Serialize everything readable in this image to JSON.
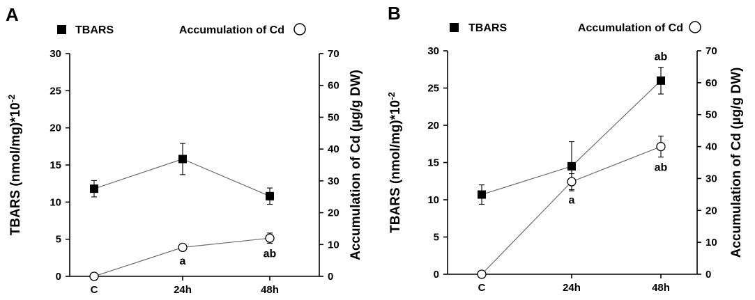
{
  "chart_data": [
    {
      "panel": "A",
      "type": "line",
      "categories": [
        "C",
        "24h",
        "48h"
      ],
      "legend": {
        "left": "TBARS",
        "right": "Accumulation of Cd"
      },
      "ylabel_left": "TBARS (nmol/mg)*10",
      "ylabel_left_sup": "-2",
      "ylabel_right": "Accumulation of Cd (µg/g DW)",
      "ylim_left": [
        0,
        30
      ],
      "yticks_left": [
        "0",
        "5",
        "10",
        "15",
        "20",
        "25",
        "30"
      ],
      "ylim_right": [
        0,
        70
      ],
      "yticks_right": [
        "0",
        "10",
        "20",
        "30",
        "40",
        "50",
        "60",
        "70"
      ],
      "series": [
        {
          "name": "TBARS",
          "axis": "left",
          "marker": "square-filled",
          "values": [
            11.8,
            15.8,
            10.8
          ],
          "errors": [
            1.1,
            2.1,
            1.1
          ],
          "labels": [
            "",
            "",
            ""
          ]
        },
        {
          "name": "Accumulation of Cd",
          "axis": "right",
          "marker": "circle-open",
          "values": [
            0,
            9.1,
            12.0
          ],
          "errors": [
            0,
            1.0,
            1.6
          ],
          "labels": [
            "",
            "a",
            "ab"
          ]
        }
      ]
    },
    {
      "panel": "B",
      "type": "line",
      "categories": [
        "C",
        "24h",
        "48h"
      ],
      "legend": {
        "left": "TBARS",
        "right": "Accumulation of Cd"
      },
      "ylabel_left": "TBARS (nmol/mg)*10",
      "ylabel_left_sup": "-2",
      "ylabel_right": "Accumulation of Cd (µg/g DW)",
      "ylim_left": [
        0,
        30
      ],
      "yticks_left": [
        "0",
        "5",
        "10",
        "15",
        "20",
        "25",
        "30"
      ],
      "ylim_right": [
        0,
        70
      ],
      "yticks_right": [
        "0",
        "10",
        "20",
        "30",
        "40",
        "50",
        "60",
        "70"
      ],
      "series": [
        {
          "name": "TBARS",
          "axis": "left",
          "marker": "square-filled",
          "values": [
            10.7,
            14.5,
            26.0
          ],
          "errors": [
            1.3,
            3.3,
            1.8
          ],
          "labels": [
            "",
            "",
            "ab"
          ]
        },
        {
          "name": "Accumulation of Cd",
          "axis": "right",
          "marker": "circle-open",
          "values": [
            0,
            29.0,
            40.0
          ],
          "errors": [
            0,
            2.5,
            3.3
          ],
          "labels": [
            "",
            "a",
            "ab"
          ]
        }
      ]
    }
  ]
}
